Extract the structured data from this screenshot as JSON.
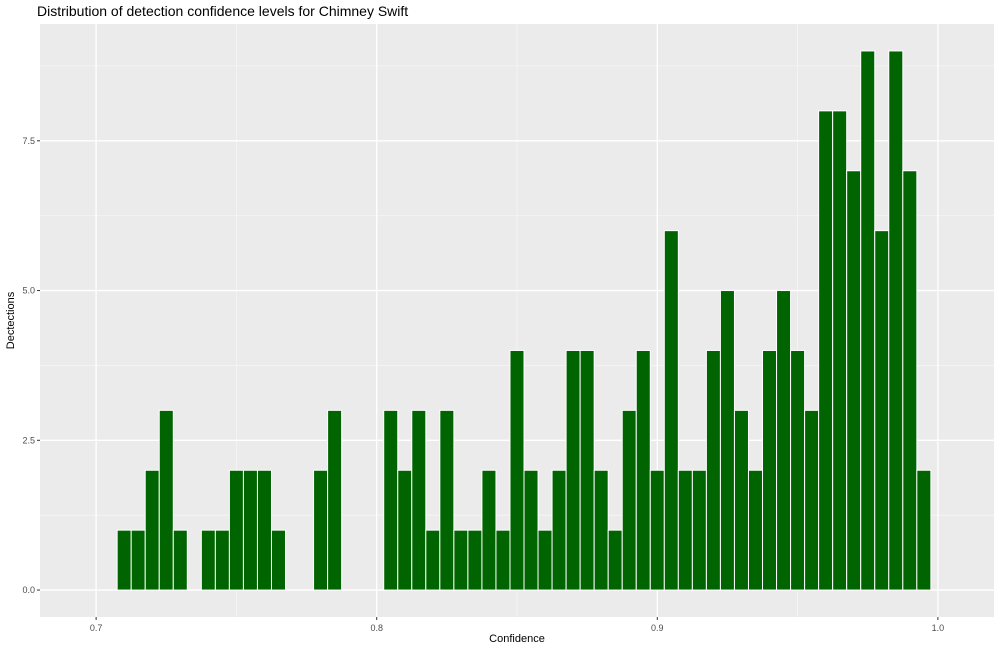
{
  "chart_data": {
    "type": "bar",
    "title": "Distribution of detection confidence levels for Chimney Swift",
    "xlabel": "Confidence",
    "ylabel": "Dectections",
    "xlim": [
      0.68,
      1.02
    ],
    "ylim": [
      -0.45,
      9.45
    ],
    "x_ticks": [
      0.7,
      0.8,
      0.9,
      1.0
    ],
    "x_tick_labels": [
      "0.7",
      "0.8",
      "0.9",
      "1.0"
    ],
    "y_ticks": [
      0,
      2.5,
      5,
      7.5
    ],
    "y_tick_labels": [
      "0.0",
      "2.5",
      "5.0",
      "7.5"
    ],
    "bar_color": "#006400",
    "bar_outline": "#ffffff",
    "panel_background": "#ebebeb",
    "grid": true,
    "bin_width": 0.005,
    "x": [
      0.71,
      0.715,
      0.72,
      0.725,
      0.73,
      0.735,
      0.74,
      0.745,
      0.75,
      0.755,
      0.76,
      0.765,
      0.77,
      0.775,
      0.78,
      0.785,
      0.79,
      0.795,
      0.8,
      0.805,
      0.81,
      0.815,
      0.82,
      0.825,
      0.83,
      0.835,
      0.84,
      0.845,
      0.85,
      0.855,
      0.86,
      0.865,
      0.87,
      0.875,
      0.88,
      0.885,
      0.89,
      0.895,
      0.9,
      0.905,
      0.91,
      0.915,
      0.92,
      0.925,
      0.93,
      0.935,
      0.94,
      0.945,
      0.95,
      0.955,
      0.96,
      0.965,
      0.97,
      0.975,
      0.98,
      0.985,
      0.99,
      0.995
    ],
    "values": [
      1,
      1,
      2,
      3,
      1,
      0,
      1,
      1,
      2,
      2,
      2,
      1,
      0,
      0,
      2,
      3,
      0,
      0,
      0,
      3,
      2,
      3,
      1,
      3,
      1,
      1,
      2,
      1,
      4,
      2,
      1,
      2,
      4,
      4,
      2,
      1,
      3,
      4,
      2,
      6,
      2,
      2,
      4,
      5,
      3,
      2,
      4,
      5,
      4,
      3,
      8,
      8,
      7,
      9,
      6,
      9,
      7,
      2
    ]
  }
}
